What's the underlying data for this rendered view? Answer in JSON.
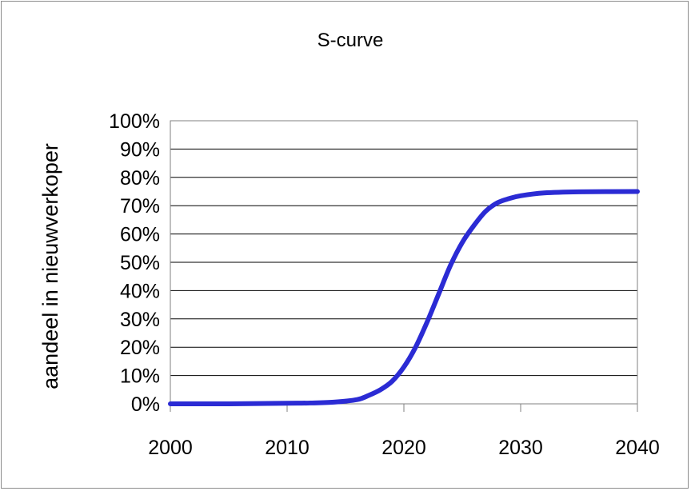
{
  "chart_data": {
    "type": "line",
    "title": "S-curve",
    "xlabel": "",
    "ylabel": "aandeel in nieuwverkoper",
    "xlim": [
      2000,
      2040
    ],
    "ylim": [
      0,
      1
    ],
    "x_ticks": [
      "2000",
      "2010",
      "2020",
      "2030",
      "2040"
    ],
    "y_ticks": [
      "0%",
      "10%",
      "20%",
      "30%",
      "40%",
      "50%",
      "60%",
      "70%",
      "80%",
      "90%",
      "100%"
    ],
    "grid": "horizontal",
    "legend": "none",
    "line_color": "#2b2bd4",
    "series": [
      {
        "x": [
          2000,
          2005,
          2010,
          2012,
          2014,
          2016,
          2017,
          2018,
          2019,
          2020,
          2021,
          2022,
          2023,
          2024,
          2025,
          2026,
          2027,
          2028,
          2029,
          2030,
          2032,
          2035,
          2040
        ],
        "values": [
          0.0,
          0.0,
          0.002,
          0.003,
          0.006,
          0.015,
          0.03,
          0.05,
          0.08,
          0.13,
          0.2,
          0.29,
          0.39,
          0.49,
          0.57,
          0.63,
          0.68,
          0.71,
          0.725,
          0.735,
          0.745,
          0.749,
          0.75
        ]
      }
    ]
  }
}
